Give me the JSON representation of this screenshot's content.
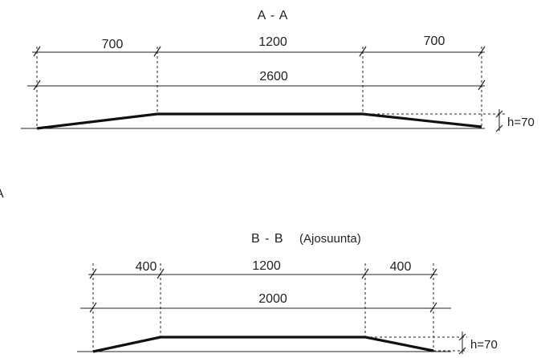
{
  "section_aa": {
    "title": "A - A",
    "dim_left": "700",
    "dim_middle": "1200",
    "dim_right": "700",
    "dim_total": "2600",
    "height_label": "h=70"
  },
  "section_bb": {
    "title": "B - B",
    "subtitle": "(Ajosuunta)",
    "dim_left": "400",
    "dim_middle": "1200",
    "dim_right": "400",
    "dim_total": "2000",
    "height_label": "h=70"
  },
  "edge_fragment": "A"
}
